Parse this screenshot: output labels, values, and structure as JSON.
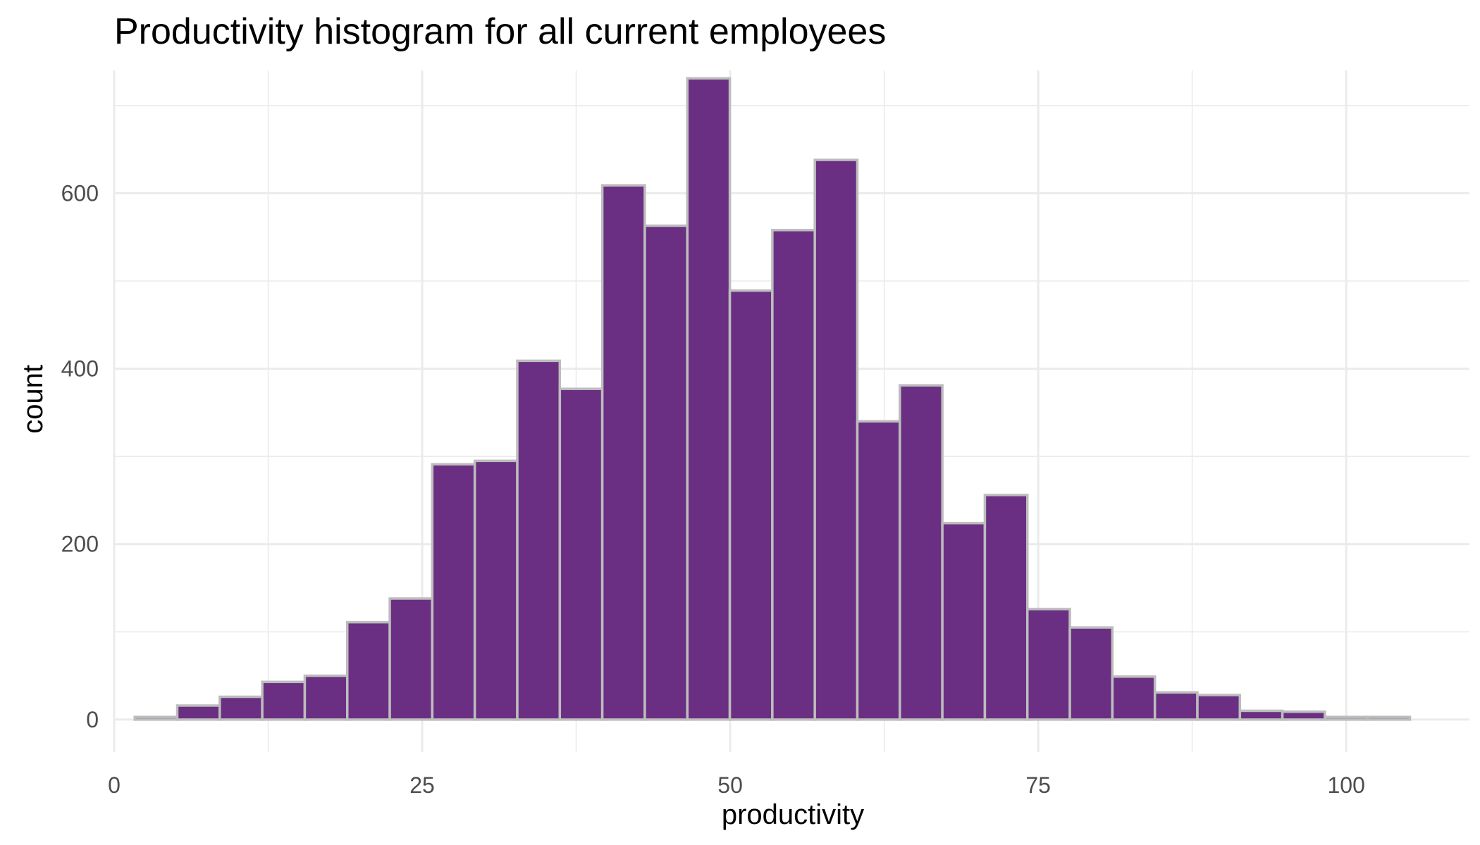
{
  "chart_data": {
    "type": "bar",
    "title": "Productivity histogram for all current employees",
    "xlabel": "productivity",
    "ylabel": "count",
    "xlim": [
      0,
      110
    ],
    "ylim": [
      -37,
      740
    ],
    "x_ticks": [
      0,
      25,
      50,
      75,
      100
    ],
    "x_minor_ticks": [
      12.5,
      37.5,
      62.5,
      87.5
    ],
    "y_ticks": [
      0,
      200,
      400,
      600
    ],
    "y_minor_ticks": [
      100,
      300,
      500,
      700
    ],
    "bin_width": 3.45,
    "bins": [
      {
        "x0": 1.67,
        "x1": 5.12,
        "count": 3
      },
      {
        "x0": 5.12,
        "x1": 8.57,
        "count": 16
      },
      {
        "x0": 8.57,
        "x1": 12.02,
        "count": 26
      },
      {
        "x0": 12.02,
        "x1": 15.47,
        "count": 43
      },
      {
        "x0": 15.47,
        "x1": 18.92,
        "count": 50
      },
      {
        "x0": 18.92,
        "x1": 22.37,
        "count": 111
      },
      {
        "x0": 22.37,
        "x1": 25.82,
        "count": 138
      },
      {
        "x0": 25.82,
        "x1": 29.27,
        "count": 291
      },
      {
        "x0": 29.27,
        "x1": 32.72,
        "count": 295
      },
      {
        "x0": 32.72,
        "x1": 36.17,
        "count": 409
      },
      {
        "x0": 36.17,
        "x1": 39.62,
        "count": 377
      },
      {
        "x0": 39.62,
        "x1": 43.07,
        "count": 609
      },
      {
        "x0": 43.07,
        "x1": 46.52,
        "count": 563
      },
      {
        "x0": 46.52,
        "x1": 49.97,
        "count": 731
      },
      {
        "x0": 49.97,
        "x1": 53.42,
        "count": 489
      },
      {
        "x0": 53.42,
        "x1": 56.87,
        "count": 558
      },
      {
        "x0": 56.87,
        "x1": 60.32,
        "count": 638
      },
      {
        "x0": 60.32,
        "x1": 63.77,
        "count": 340
      },
      {
        "x0": 63.77,
        "x1": 67.22,
        "count": 381
      },
      {
        "x0": 67.22,
        "x1": 70.67,
        "count": 224
      },
      {
        "x0": 70.67,
        "x1": 74.12,
        "count": 256
      },
      {
        "x0": 74.12,
        "x1": 77.57,
        "count": 126
      },
      {
        "x0": 77.57,
        "x1": 81.02,
        "count": 105
      },
      {
        "x0": 81.02,
        "x1": 84.47,
        "count": 49
      },
      {
        "x0": 84.47,
        "x1": 87.92,
        "count": 31
      },
      {
        "x0": 87.92,
        "x1": 91.37,
        "count": 28
      },
      {
        "x0": 91.37,
        "x1": 94.82,
        "count": 10
      },
      {
        "x0": 94.82,
        "x1": 98.27,
        "count": 9
      },
      {
        "x0": 98.27,
        "x1": 101.72,
        "count": 3
      },
      {
        "x0": 101.72,
        "x1": 105.17,
        "count": 3
      }
    ],
    "colors": {
      "fill": "#6a2f82",
      "outline": "#bdbdbd",
      "grid": "#ebebeb",
      "background": "#ffffff"
    },
    "grid": true,
    "legend": "none"
  }
}
